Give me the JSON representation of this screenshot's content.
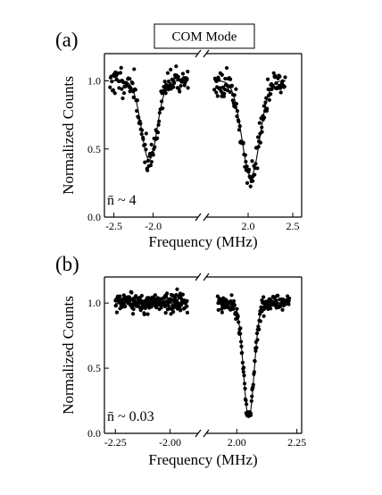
{
  "chart_data": [
    {
      "panel_label": "(a)",
      "type": "scatter",
      "title": "COM Mode",
      "xlabel": "Frequency (MHz)",
      "ylabel": "Normalized Counts",
      "annotation": "n̄ ~ 4",
      "axis_break": true,
      "left_segment": {
        "xlim": [
          -2.62,
          -1.45
        ],
        "ticks": [
          -2.5,
          -2.0
        ],
        "tick_labels": [
          "-2.5",
          "-2.0"
        ]
      },
      "right_segment": {
        "xlim": [
          1.55,
          2.6
        ],
        "ticks": [
          2.0,
          2.5
        ],
        "tick_labels": [
          "2.0",
          "2.5"
        ]
      },
      "ylim": [
        0.0,
        1.2
      ],
      "yticks": [
        0.0,
        0.5,
        1.0
      ],
      "ytick_labels": [
        "0.0",
        "0.5",
        "1.0"
      ],
      "series": [
        {
          "segment": "left",
          "dip_center": -2.05,
          "dip_min": 0.42,
          "dip_width": 0.1,
          "baseline": 1.0,
          "x_start": -2.55,
          "x_end": -1.55,
          "n_points": 130,
          "noise": 0.05,
          "seed": 11
        },
        {
          "segment": "right",
          "dip_center": 2.03,
          "dip_min": 0.3,
          "dip_width": 0.1,
          "baseline": 1.0,
          "x_start": 1.62,
          "x_end": 2.42,
          "n_points": 130,
          "noise": 0.05,
          "seed": 23
        }
      ]
    },
    {
      "panel_label": "(b)",
      "type": "scatter",
      "title": "",
      "xlabel": "Frequency (MHz)",
      "ylabel": "Normalized Counts",
      "annotation": "n̄ ~ 0.03",
      "axis_break": true,
      "left_segment": {
        "xlim": [
          -2.3,
          -1.88
        ],
        "ticks": [
          -2.25,
          -2.0
        ],
        "tick_labels": [
          "-2.25",
          "-2.00"
        ]
      },
      "right_segment": {
        "xlim": [
          1.88,
          2.27
        ],
        "ticks": [
          2.0,
          2.25
        ],
        "tick_labels": [
          "2.00",
          "2.25"
        ]
      },
      "ylim": [
        0.0,
        1.2
      ],
      "yticks": [
        0.0,
        0.5,
        1.0
      ],
      "ytick_labels": [
        "0.0",
        "0.5",
        "1.0"
      ],
      "series": [
        {
          "segment": "left",
          "dip_center": null,
          "dip_min": null,
          "dip_width": null,
          "baseline": 1.0,
          "x_start": -2.25,
          "x_end": -1.92,
          "n_points": 220,
          "noise": 0.035,
          "seed": 37
        },
        {
          "segment": "right",
          "dip_center": 2.05,
          "dip_min": 0.12,
          "dip_width": 0.022,
          "baseline": 1.0,
          "x_start": 1.92,
          "x_end": 2.22,
          "n_points": 180,
          "noise": 0.03,
          "seed": 53
        }
      ]
    }
  ]
}
